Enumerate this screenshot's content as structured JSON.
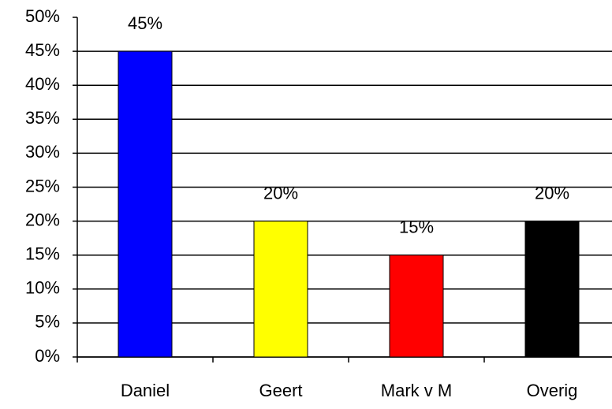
{
  "chart_data": {
    "type": "bar",
    "categories": [
      "Daniel",
      "Geert",
      "Mark v M",
      "Overig"
    ],
    "values": [
      45,
      20,
      15,
      20
    ],
    "value_labels": [
      "45%",
      "20%",
      "15%",
      "20%"
    ],
    "colors": [
      "#0000ff",
      "#ffff00",
      "#ff0000",
      "#000000"
    ],
    "ylim": [
      0,
      50
    ],
    "yticks": [
      {
        "value": 0,
        "label": "0%"
      },
      {
        "value": 5,
        "label": "5%"
      },
      {
        "value": 10,
        "label": "10%"
      },
      {
        "value": 15,
        "label": "15%"
      },
      {
        "value": 20,
        "label": "20%"
      },
      {
        "value": 25,
        "label": "25%"
      },
      {
        "value": 30,
        "label": "30%"
      },
      {
        "value": 35,
        "label": "35%"
      },
      {
        "value": 40,
        "label": "40%"
      },
      {
        "value": 45,
        "label": "45%"
      },
      {
        "value": 50,
        "label": "50%"
      }
    ],
    "grid": true
  }
}
